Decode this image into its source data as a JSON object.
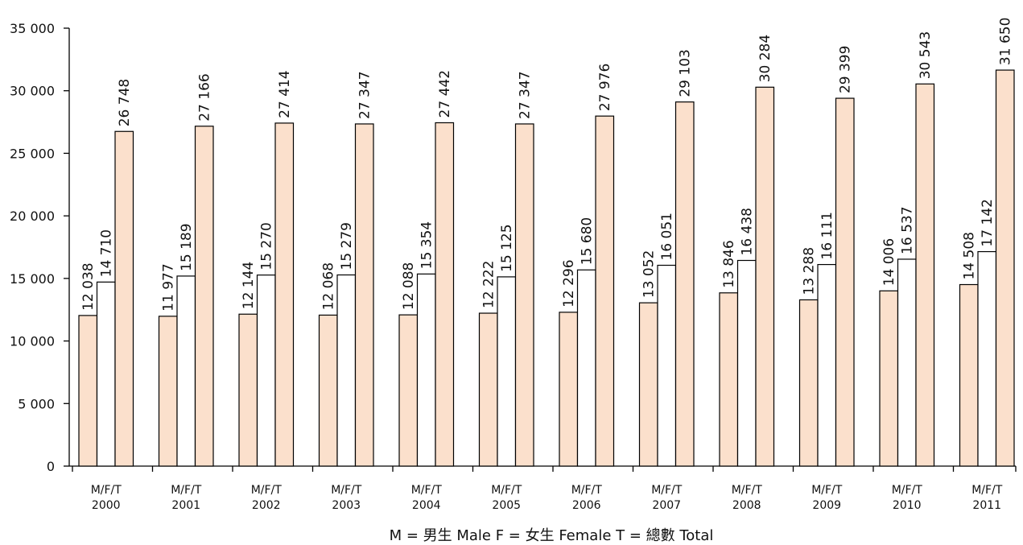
{
  "chart_data": {
    "type": "bar",
    "categories": [
      "2000",
      "2001",
      "2002",
      "2003",
      "2004",
      "2005",
      "2006",
      "2007",
      "2008",
      "2009",
      "2010",
      "2011"
    ],
    "category_prefix": "M/F/T",
    "series": [
      {
        "name": "M",
        "color": "#fbe0cc",
        "values": [
          12038,
          11977,
          12144,
          12068,
          12088,
          12222,
          12296,
          13052,
          13846,
          13288,
          14006,
          14508
        ]
      },
      {
        "name": "F",
        "color": "#ffffff",
        "values": [
          14710,
          15189,
          15270,
          15279,
          15354,
          15125,
          15680,
          16051,
          16438,
          16111,
          16537,
          17142
        ]
      },
      {
        "name": "T",
        "color": "#fbe0cc",
        "values": [
          26748,
          27166,
          27414,
          27347,
          27442,
          27347,
          27976,
          29103,
          30284,
          29399,
          30543,
          31650
        ]
      }
    ],
    "data_labels": {
      "M": [
        "12 038",
        "11 977",
        "12 144",
        "12 068",
        "12 088",
        "12 222",
        "12 296",
        "13 052",
        "13 846",
        "13 288",
        "14 006",
        "14 508"
      ],
      "F": [
        "14 710",
        "15 189",
        "15 270",
        "15 279",
        "15 354",
        "15 125",
        "15 680",
        "16 051",
        "16 438",
        "16 111",
        "16 537",
        "17 142"
      ],
      "T": [
        "26 748",
        "27 166",
        "27 414",
        "27 347",
        "27 442",
        "27 347",
        "27 976",
        "29 103",
        "30 284",
        "29 399",
        "30 543",
        "31 650"
      ]
    },
    "ylim": [
      0,
      35000
    ],
    "yticks": [
      0,
      5000,
      10000,
      15000,
      20000,
      25000,
      30000,
      35000
    ],
    "ytick_labels": [
      "0",
      "5 000",
      "10 000",
      "15 000",
      "20 000",
      "25 000",
      "30 000",
      "35 000"
    ],
    "legend_text": "M = 男生 Male     F = 女生 Female     T = 總數 Total",
    "legend_position": "bottom-center",
    "grid": false,
    "xlabel": "",
    "ylabel": ""
  }
}
